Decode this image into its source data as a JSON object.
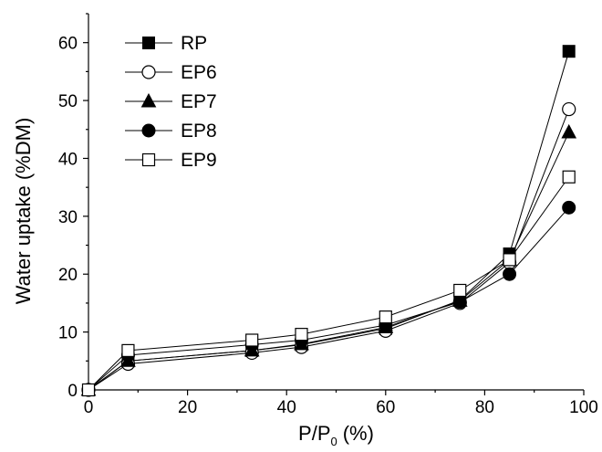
{
  "chart_data": {
    "type": "line",
    "title": "",
    "xlabel": "P/P",
    "xlabel_subscript": "0",
    "xlabel_unit": "(%)",
    "ylabel": "Water uptake (%DM)",
    "xlim": [
      0,
      100
    ],
    "ylim": [
      0,
      65
    ],
    "xticks": [
      0,
      20,
      40,
      60,
      80,
      100
    ],
    "yticks": [
      0,
      10,
      20,
      30,
      40,
      50,
      60
    ],
    "grid": false,
    "legend_position": "top-left",
    "x": [
      0,
      8,
      33,
      43,
      60,
      75,
      85,
      97
    ],
    "series": [
      {
        "name": "RP",
        "marker": "square-filled",
        "values": [
          0,
          5.0,
          6.8,
          7.8,
          10.6,
          15.5,
          23.5,
          58.5
        ]
      },
      {
        "name": "EP6",
        "marker": "circle-open",
        "values": [
          0,
          4.5,
          6.4,
          7.4,
          10.2,
          15.0,
          22.0,
          48.5
        ]
      },
      {
        "name": "EP7",
        "marker": "triangle-filled",
        "values": [
          0,
          5.0,
          6.8,
          7.9,
          10.8,
          15.4,
          22.5,
          44.5
        ]
      },
      {
        "name": "EP8",
        "marker": "circle-filled",
        "values": [
          0,
          6.0,
          7.8,
          8.6,
          11.2,
          15.2,
          20.0,
          31.5
        ]
      },
      {
        "name": "EP9",
        "marker": "square-open",
        "values": [
          0,
          6.8,
          8.6,
          9.6,
          12.6,
          17.2,
          22.5,
          36.8
        ]
      }
    ]
  }
}
